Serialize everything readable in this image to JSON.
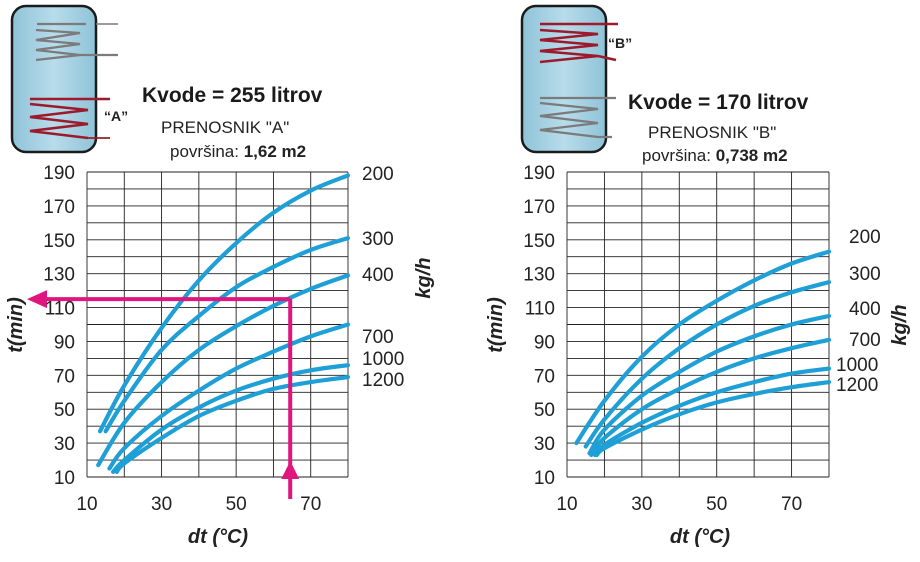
{
  "chart_data": [
    {
      "type": "line",
      "tank_label": "“A”",
      "title": "Kvode = 255 litrov",
      "subtitle": "PRENOSNIK \"A\"",
      "surface_label": "površina:",
      "surface_value": "1,62 m2",
      "xlabel": "dt (°C)",
      "ylabel": "t(min)",
      "flow_unit": "kg/h",
      "xlim": [
        10,
        80
      ],
      "ylim": [
        10,
        190
      ],
      "x_ticks": [
        10,
        30,
        50,
        70
      ],
      "y_ticks": [
        10,
        30,
        50,
        70,
        90,
        110,
        130,
        150,
        170,
        190
      ],
      "series": [
        {
          "name": "200",
          "x": [
            13.5,
            20,
            30,
            40,
            50,
            60,
            70,
            80
          ],
          "values": [
            37,
            64,
            98,
            126,
            148,
            166,
            179,
            188
          ]
        },
        {
          "name": "300",
          "x": [
            15,
            20,
            30,
            40,
            50,
            60,
            70,
            80
          ],
          "values": [
            37,
            55,
            85,
            105,
            122,
            134,
            144,
            151
          ]
        },
        {
          "name": "400",
          "x": [
            13,
            20,
            30,
            40,
            50,
            60,
            70,
            80
          ],
          "values": [
            17,
            42,
            66,
            85,
            99,
            111,
            121,
            129
          ]
        },
        {
          "name": "700",
          "x": [
            16,
            20,
            30,
            40,
            50,
            60,
            70,
            80
          ],
          "values": [
            15,
            27,
            46,
            61,
            74,
            84,
            93,
            100
          ]
        },
        {
          "name": "1000",
          "x": [
            17,
            20,
            30,
            40,
            50,
            60,
            70,
            80
          ],
          "values": [
            13,
            20,
            38,
            51,
            61,
            68,
            73,
            76
          ]
        },
        {
          "name": "1200",
          "x": [
            18,
            20,
            30,
            40,
            50,
            60,
            70,
            80
          ],
          "values": [
            13,
            18,
            33,
            46,
            55,
            62,
            66,
            69
          ]
        }
      ],
      "example": {
        "dt": 64.5,
        "t": 115
      }
    },
    {
      "type": "line",
      "tank_label": "“B”",
      "title": "Kvode = 170 litrov",
      "subtitle": "PRENOSNIK \"B\"",
      "surface_label": "površina:",
      "surface_value": "0,738 m2",
      "xlabel": "dt (°C)",
      "ylabel": "t(min)",
      "flow_unit": "kg/h",
      "xlim": [
        10,
        80
      ],
      "ylim": [
        10,
        190
      ],
      "x_ticks": [
        10,
        30,
        50,
        70
      ],
      "y_ticks": [
        10,
        30,
        50,
        70,
        90,
        110,
        130,
        150,
        170,
        190
      ],
      "series": [
        {
          "name": "200",
          "x": [
            12.5,
            20,
            30,
            40,
            50,
            60,
            70,
            80
          ],
          "values": [
            30,
            55,
            81,
            100,
            114,
            126,
            136,
            143
          ]
        },
        {
          "name": "300",
          "x": [
            15,
            20,
            30,
            40,
            50,
            60,
            70,
            80
          ],
          "values": [
            28,
            44,
            68,
            86,
            100,
            111,
            119,
            125
          ]
        },
        {
          "name": "400",
          "x": [
            16,
            20,
            30,
            40,
            50,
            60,
            70,
            80
          ],
          "values": [
            24,
            38,
            58,
            72,
            84,
            93,
            100,
            105
          ]
        },
        {
          "name": "700",
          "x": [
            16.5,
            20,
            30,
            40,
            50,
            60,
            70,
            80
          ],
          "values": [
            23,
            33,
            50,
            62,
            72,
            80,
            86,
            91
          ]
        },
        {
          "name": "1000",
          "x": [
            17.5,
            20,
            30,
            40,
            50,
            60,
            70,
            80
          ],
          "values": [
            23,
            29,
            42,
            52,
            60,
            66,
            71,
            74
          ]
        },
        {
          "name": "1200",
          "x": [
            18,
            20,
            30,
            40,
            50,
            60,
            70,
            80
          ],
          "values": [
            23,
            27,
            38,
            47,
            54,
            59,
            63,
            66
          ]
        }
      ]
    }
  ]
}
